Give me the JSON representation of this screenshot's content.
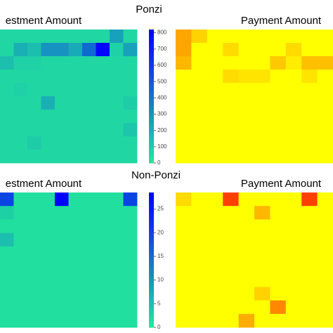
{
  "row_titles": [
    "Ponzi",
    "Non-Ponzi"
  ],
  "chart_data": [
    {
      "type": "heatmap",
      "title": "estment Amount",
      "clim": [
        0,
        820
      ],
      "colormap": [
        "#22e89c",
        "#0000ff"
      ],
      "values": [
        [
          60,
          60,
          60,
          60,
          60,
          60,
          60,
          60,
          250,
          60
        ],
        [
          60,
          200,
          150,
          300,
          300,
          220,
          450,
          800,
          80,
          250
        ],
        [
          150,
          80,
          80,
          60,
          60,
          60,
          60,
          60,
          60,
          60
        ],
        [
          60,
          60,
          60,
          60,
          60,
          60,
          60,
          60,
          60,
          60
        ],
        [
          60,
          80,
          60,
          60,
          60,
          60,
          60,
          60,
          60,
          60
        ],
        [
          60,
          60,
          60,
          200,
          60,
          60,
          60,
          60,
          60,
          100
        ],
        [
          60,
          60,
          60,
          60,
          60,
          60,
          60,
          60,
          60,
          60
        ],
        [
          60,
          60,
          60,
          60,
          60,
          60,
          60,
          60,
          60,
          120
        ],
        [
          60,
          60,
          100,
          60,
          60,
          60,
          60,
          60,
          60,
          60
        ],
        [
          60,
          60,
          60,
          60,
          60,
          60,
          60,
          60,
          60,
          60
        ]
      ],
      "colorbar": {
        "ylim": [
          0,
          820
        ],
        "yticks": [
          0,
          100,
          200,
          300,
          400,
          500,
          600,
          700,
          800
        ]
      }
    },
    {
      "type": "heatmap",
      "title": "Payment Amount",
      "clim": [
        0,
        1
      ],
      "colormap": [
        "#ffff00",
        "#ffa500",
        "#ff1500"
      ],
      "values": [
        [
          0.5,
          0.25,
          0,
          0,
          0,
          0,
          0,
          0,
          0,
          0
        ],
        [
          0.5,
          0,
          0,
          0.2,
          0,
          0,
          0,
          0.2,
          0,
          0
        ],
        [
          0.4,
          0,
          0,
          0,
          0,
          0,
          0.3,
          0.1,
          0.35,
          0.35
        ],
        [
          0,
          0,
          0,
          0.2,
          0.15,
          0.15,
          0,
          0,
          0.15,
          0
        ],
        [
          0,
          0,
          0,
          0,
          0,
          0,
          0,
          0,
          0,
          0
        ],
        [
          0,
          0,
          0,
          0,
          0,
          0,
          0,
          0,
          0,
          0
        ],
        [
          0,
          0,
          0,
          0,
          0,
          0,
          0,
          0,
          0,
          0
        ],
        [
          0,
          0,
          0,
          0,
          0,
          0,
          0,
          0,
          0,
          0
        ],
        [
          0,
          0,
          0,
          0,
          0,
          0,
          0,
          0,
          0,
          0
        ],
        [
          0,
          0,
          0,
          0,
          0,
          0,
          0,
          0,
          0,
          0
        ]
      ]
    },
    {
      "type": "heatmap",
      "title": "estment Amount",
      "clim": [
        0,
        28.5
      ],
      "colormap": [
        "#22e89c",
        "#0000ff"
      ],
      "values": [
        [
          20,
          1,
          1,
          1,
          28,
          1,
          1,
          1,
          1,
          20
        ],
        [
          3,
          1,
          1,
          1,
          1,
          1,
          1,
          1,
          1,
          1
        ],
        [
          1,
          1,
          1,
          1,
          1,
          1,
          1,
          1,
          1,
          1
        ],
        [
          5,
          1,
          1,
          1,
          1,
          1,
          1,
          1,
          1,
          1
        ],
        [
          1,
          1,
          1,
          1,
          1,
          1,
          1,
          1,
          1,
          1
        ],
        [
          1,
          1,
          1,
          1,
          1,
          1,
          1,
          1,
          1,
          1
        ],
        [
          1,
          1,
          1,
          1,
          1,
          1,
          1,
          1,
          1,
          1
        ],
        [
          1,
          1,
          1,
          1,
          1,
          1,
          1,
          1,
          1,
          1
        ],
        [
          1,
          1,
          1,
          1,
          1,
          1,
          1,
          1,
          1,
          1
        ],
        [
          1,
          1,
          1,
          1,
          1,
          1,
          1,
          1,
          1,
          1
        ]
      ],
      "colorbar": {
        "ylim": [
          0,
          28.5
        ],
        "yticks": [
          0,
          5,
          10,
          15,
          20,
          25
        ]
      }
    },
    {
      "type": "heatmap",
      "title": "Payment Amount",
      "clim": [
        0,
        1
      ],
      "colormap": [
        "#ffff00",
        "#ffa500",
        "#ff1500"
      ],
      "values": [
        [
          0.2,
          0,
          0,
          0.85,
          0,
          0,
          0,
          0,
          0.85,
          0
        ],
        [
          0,
          0,
          0,
          0,
          0,
          0.4,
          0,
          0,
          0,
          0
        ],
        [
          0,
          0,
          0,
          0,
          0,
          0,
          0,
          0,
          0,
          0
        ],
        [
          0,
          0,
          0,
          0,
          0,
          0,
          0,
          0,
          0,
          0
        ],
        [
          0,
          0,
          0,
          0,
          0,
          0,
          0,
          0,
          0,
          0
        ],
        [
          0,
          0,
          0,
          0,
          0,
          0,
          0,
          0,
          0,
          0
        ],
        [
          0,
          0,
          0,
          0,
          0,
          0,
          0,
          0,
          0,
          0
        ],
        [
          0,
          0,
          0,
          0,
          0,
          0.25,
          0,
          0,
          0,
          0
        ],
        [
          0,
          0,
          0,
          0,
          0,
          0,
          0.6,
          0,
          0,
          0
        ],
        [
          0,
          0,
          0,
          0,
          0.45,
          0,
          0,
          0,
          0,
          0
        ]
      ]
    }
  ]
}
